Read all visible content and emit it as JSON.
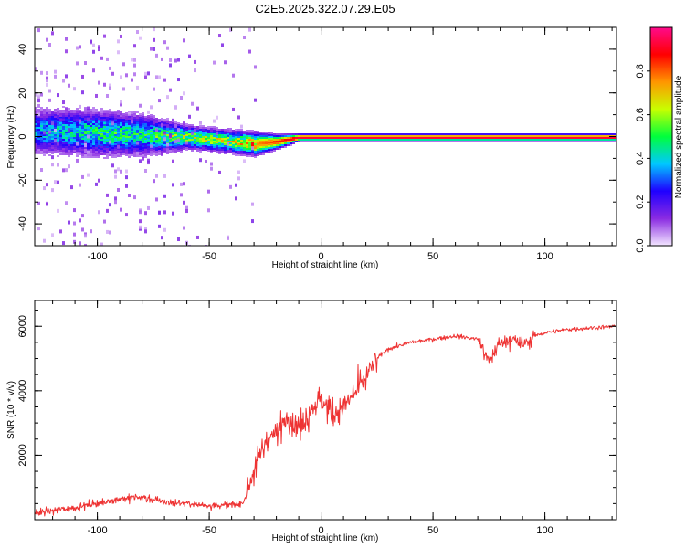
{
  "figure": {
    "title": "C2E5.2025.322.07.29.E05"
  },
  "chart_data": [
    {
      "type": "heatmap",
      "xlabel": "Height of straight line (km)",
      "ylabel": "Frequency (Hz)",
      "xlim": [
        -128,
        132
      ],
      "ylim": [
        -50,
        50
      ],
      "xticks": [
        -100,
        -50,
        0,
        50,
        100
      ],
      "yticks": [
        -40,
        -20,
        0,
        20,
        40
      ],
      "grid": false,
      "colorbar": {
        "label": "Normalized spectral amplitude",
        "range": [
          0,
          1
        ],
        "ticks": [
          0.0,
          0.2,
          0.4,
          0.6,
          0.8
        ],
        "colormap": "rainbow (white-lavender, violet, blue, cyan, green, yellow, orange, red, magenta)",
        "colors": [
          "#f3e6ff",
          "#8a2be2",
          "#1f00ff",
          "#00c8ff",
          "#00ff3c",
          "#c8ff00",
          "#ff9600",
          "#ff0000",
          "#ff0a8c"
        ]
      },
      "series": [
        {
          "x": [
            -128,
            -100,
            -80,
            -60,
            -40,
            -30,
            -20,
            -10,
            0,
            50,
            100,
            132
          ],
          "y": [
            3,
            2,
            1,
            0,
            -2,
            -3,
            -2,
            0,
            0,
            0,
            0,
            0
          ],
          "band_halfwidth_hz": [
            10,
            10,
            9,
            5,
            5,
            5,
            3,
            1.5,
            1.5,
            1.5,
            1.5,
            1.5
          ],
          "peak_amplitude": [
            0.35,
            0.45,
            0.45,
            0.55,
            0.6,
            0.75,
            0.85,
            0.95,
            0.95,
            0.95,
            0.95,
            0.95
          ]
        }
      ]
    },
    {
      "type": "line",
      "xlabel": "Height of straight line (km)",
      "ylabel": "SNR (10 * v/v)",
      "xlim": [
        -128,
        132
      ],
      "ylim": [
        0,
        6800
      ],
      "xticks": [
        -100,
        -50,
        0,
        50,
        100
      ],
      "yticks": [
        2000,
        4000,
        6000
      ],
      "grid": false,
      "color": "#ee3333",
      "series": [
        {
          "x": [
            -128,
            -110,
            -100,
            -90,
            -80,
            -70,
            -60,
            -50,
            -40,
            -35,
            -30,
            -25,
            -20,
            -15,
            -10,
            -5,
            0,
            5,
            10,
            15,
            20,
            25,
            30,
            40,
            50,
            60,
            70,
            75,
            80,
            85,
            90,
            95,
            100,
            110,
            120,
            132
          ],
          "y": [
            200,
            380,
            500,
            650,
            700,
            550,
            500,
            450,
            450,
            520,
            1500,
            2400,
            2700,
            3200,
            2900,
            3400,
            3700,
            3300,
            3500,
            3900,
            4400,
            5000,
            5300,
            5500,
            5600,
            5700,
            5600,
            4900,
            5500,
            5600,
            5400,
            5700,
            5800,
            5900,
            5950,
            6000
          ]
        }
      ]
    }
  ]
}
